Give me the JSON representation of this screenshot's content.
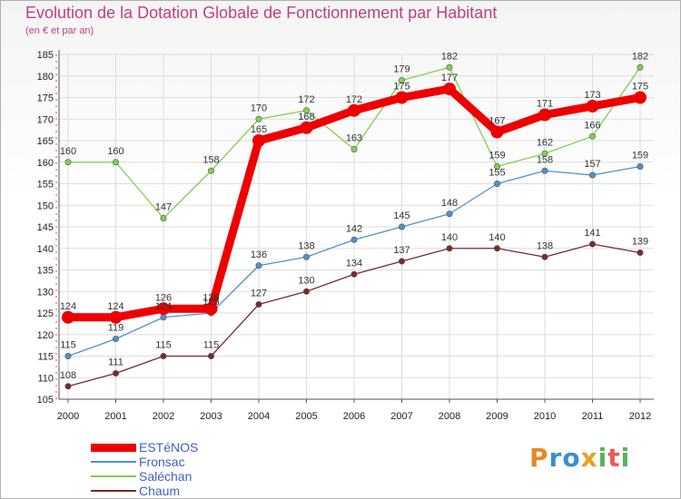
{
  "title": "Evolution de la Dotation Globale de Fonctionnement par Habitant",
  "subtitle": "(en € et par an)",
  "logo": {
    "text": "Proxiti",
    "letters": [
      "P",
      "r",
      "o",
      "x",
      "i",
      "t",
      "i"
    ],
    "colors": [
      "#e8872a",
      "#3a8fd0",
      "#3a8fd0",
      "#e8a020",
      "#5ab05a",
      "#e85a5a",
      "#5ab05a"
    ]
  },
  "chart_data": {
    "type": "line",
    "title": "Evolution de la Dotation Globale de Fonctionnement par Habitant",
    "subtitle": "(en € et par an)",
    "xlabel": "",
    "ylabel": "",
    "ylim": [
      105,
      185
    ],
    "yticks": [
      105,
      110,
      115,
      120,
      125,
      130,
      135,
      140,
      145,
      150,
      155,
      160,
      165,
      170,
      175,
      180,
      185
    ],
    "x": [
      "2000",
      "2001",
      "2002",
      "2003",
      "2004",
      "2005",
      "2006",
      "2007",
      "2008",
      "2009",
      "2010",
      "2011",
      "2012"
    ],
    "legend_position": "bottom-left",
    "series": [
      {
        "name": "ESTéNOS",
        "color": "#ee0000",
        "values": [
          124,
          124,
          126,
          126,
          165,
          168,
          172,
          175,
          177,
          167,
          171,
          173,
          175
        ]
      },
      {
        "name": "Fronsac",
        "color": "#5090d0",
        "values": [
          115,
          119,
          124,
          125,
          136,
          138,
          142,
          145,
          148,
          155,
          158,
          157,
          159
        ]
      },
      {
        "name": "Saléchan",
        "color": "#80d050",
        "values": [
          160,
          160,
          147,
          158,
          170,
          172,
          163,
          179,
          182,
          159,
          162,
          166,
          182
        ]
      },
      {
        "name": "Chaum",
        "color": "#7a2a2a",
        "values": [
          108,
          111,
          115,
          115,
          127,
          130,
          134,
          137,
          140,
          140,
          138,
          141,
          139
        ]
      }
    ]
  }
}
